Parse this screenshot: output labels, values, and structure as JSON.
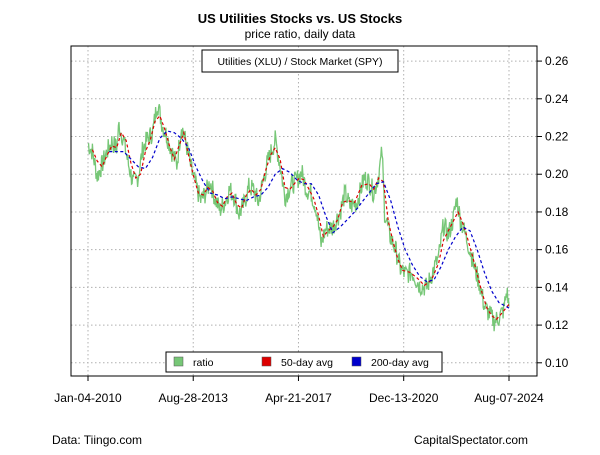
{
  "chart_data": {
    "type": "line",
    "title": "US Utilities Stocks vs. US Stocks",
    "subtitle": "price ratio, daily data",
    "xlabel": "",
    "ylabel": "",
    "box_label": "Utilities (XLU) / Stock Market (SPY)",
    "x_range": [
      "2010-01-04",
      "2024-08-07"
    ],
    "y_range": [
      0.093,
      0.268
    ],
    "y_ticks": [
      "0.10",
      "0.12",
      "0.14",
      "0.16",
      "0.18",
      "0.20",
      "0.22",
      "0.24",
      "0.26"
    ],
    "y_tick_values": [
      0.1,
      0.12,
      0.14,
      0.16,
      0.18,
      0.2,
      0.22,
      0.24,
      0.26
    ],
    "x_ticks": [
      "Jan-04-2010",
      "Aug-28-2013",
      "Apr-21-2017",
      "Dec-13-2020",
      "Aug-07-2024"
    ],
    "x_tick_values": [
      "2010-01-04",
      "2013-08-28",
      "2017-04-21",
      "2020-12-13",
      "2024-08-07"
    ],
    "grid": true,
    "legend_position": "bottom",
    "series": [
      {
        "name": "ratio",
        "color": "#77c777",
        "points": [
          [
            "2010-01-04",
            0.216
          ],
          [
            "2010-03-01",
            0.212
          ],
          [
            "2010-05-01",
            0.199
          ],
          [
            "2010-07-01",
            0.205
          ],
          [
            "2010-09-01",
            0.212
          ],
          [
            "2010-11-01",
            0.217
          ],
          [
            "2011-01-01",
            0.214
          ],
          [
            "2011-02-01",
            0.226
          ],
          [
            "2011-04-01",
            0.218
          ],
          [
            "2011-06-01",
            0.205
          ],
          [
            "2011-08-01",
            0.195
          ],
          [
            "2011-10-01",
            0.199
          ],
          [
            "2011-12-01",
            0.214
          ],
          [
            "2012-02-01",
            0.219
          ],
          [
            "2012-04-01",
            0.222
          ],
          [
            "2012-06-01",
            0.238
          ],
          [
            "2012-08-01",
            0.226
          ],
          [
            "2012-10-01",
            0.22
          ],
          [
            "2012-12-01",
            0.212
          ],
          [
            "2013-02-01",
            0.205
          ],
          [
            "2013-04-01",
            0.226
          ],
          [
            "2013-06-01",
            0.216
          ],
          [
            "2013-08-01",
            0.203
          ],
          [
            "2013-10-01",
            0.194
          ],
          [
            "2013-12-01",
            0.186
          ],
          [
            "2014-02-01",
            0.19
          ],
          [
            "2014-04-01",
            0.196
          ],
          [
            "2014-06-01",
            0.187
          ],
          [
            "2014-08-01",
            0.181
          ],
          [
            "2014-10-01",
            0.185
          ],
          [
            "2014-12-01",
            0.192
          ],
          [
            "2015-02-01",
            0.188
          ],
          [
            "2015-04-01",
            0.179
          ],
          [
            "2015-06-01",
            0.184
          ],
          [
            "2015-08-01",
            0.193
          ],
          [
            "2015-10-01",
            0.192
          ],
          [
            "2015-12-01",
            0.185
          ],
          [
            "2016-02-01",
            0.197
          ],
          [
            "2016-04-01",
            0.207
          ],
          [
            "2016-07-01",
            0.218
          ],
          [
            "2016-09-01",
            0.205
          ],
          [
            "2016-11-01",
            0.188
          ],
          [
            "2017-01-01",
            0.193
          ],
          [
            "2017-04-01",
            0.197
          ],
          [
            "2017-06-01",
            0.201
          ],
          [
            "2017-08-01",
            0.192
          ],
          [
            "2017-10-01",
            0.19
          ],
          [
            "2017-12-01",
            0.182
          ],
          [
            "2018-02-01",
            0.163
          ],
          [
            "2018-04-01",
            0.171
          ],
          [
            "2018-07-01",
            0.172
          ],
          [
            "2018-10-01",
            0.18
          ],
          [
            "2018-12-01",
            0.19
          ],
          [
            "2019-02-01",
            0.183
          ],
          [
            "2019-05-01",
            0.185
          ],
          [
            "2019-08-01",
            0.198
          ],
          [
            "2019-10-01",
            0.196
          ],
          [
            "2019-12-01",
            0.19
          ],
          [
            "2020-02-01",
            0.2
          ],
          [
            "2020-03-15",
            0.212
          ],
          [
            "2020-04-15",
            0.18
          ],
          [
            "2020-06-15",
            0.168
          ],
          [
            "2020-09-01",
            0.16
          ],
          [
            "2020-11-01",
            0.15
          ],
          [
            "2021-01-01",
            0.147
          ],
          [
            "2021-04-01",
            0.148
          ],
          [
            "2021-07-01",
            0.141
          ],
          [
            "2021-10-01",
            0.14
          ],
          [
            "2022-01-01",
            0.15
          ],
          [
            "2022-03-01",
            0.156
          ],
          [
            "2022-05-01",
            0.173
          ],
          [
            "2022-07-01",
            0.168
          ],
          [
            "2022-09-01",
            0.176
          ],
          [
            "2022-10-15",
            0.187
          ],
          [
            "2022-12-01",
            0.176
          ],
          [
            "2023-02-01",
            0.168
          ],
          [
            "2023-04-01",
            0.16
          ],
          [
            "2023-06-01",
            0.15
          ],
          [
            "2023-08-01",
            0.142
          ],
          [
            "2023-10-01",
            0.13
          ],
          [
            "2023-12-01",
            0.126
          ],
          [
            "2024-02-01",
            0.122
          ],
          [
            "2024-04-01",
            0.124
          ],
          [
            "2024-06-01",
            0.128
          ],
          [
            "2024-07-10",
            0.138
          ],
          [
            "2024-08-07",
            0.13
          ]
        ]
      },
      {
        "name": "50-day avg",
        "color": "#dd0000",
        "points": [
          [
            "2010-03-01",
            0.213
          ],
          [
            "2010-05-01",
            0.207
          ],
          [
            "2010-07-01",
            0.204
          ],
          [
            "2010-09-01",
            0.21
          ],
          [
            "2010-11-01",
            0.215
          ],
          [
            "2011-01-01",
            0.214
          ],
          [
            "2011-03-01",
            0.222
          ],
          [
            "2011-05-01",
            0.218
          ],
          [
            "2011-07-01",
            0.206
          ],
          [
            "2011-09-01",
            0.198
          ],
          [
            "2011-11-01",
            0.2
          ],
          [
            "2012-01-01",
            0.212
          ],
          [
            "2012-03-01",
            0.218
          ],
          [
            "2012-05-01",
            0.228
          ],
          [
            "2012-07-01",
            0.231
          ],
          [
            "2012-09-01",
            0.224
          ],
          [
            "2012-11-01",
            0.215
          ],
          [
            "2013-01-01",
            0.208
          ],
          [
            "2013-03-01",
            0.215
          ],
          [
            "2013-05-01",
            0.222
          ],
          [
            "2013-07-01",
            0.21
          ],
          [
            "2013-09-01",
            0.199
          ],
          [
            "2013-11-01",
            0.19
          ],
          [
            "2014-01-01",
            0.189
          ],
          [
            "2014-03-01",
            0.193
          ],
          [
            "2014-05-01",
            0.191
          ],
          [
            "2014-07-01",
            0.185
          ],
          [
            "2014-09-01",
            0.183
          ],
          [
            "2014-11-01",
            0.188
          ],
          [
            "2015-01-01",
            0.19
          ],
          [
            "2015-03-01",
            0.184
          ],
          [
            "2015-05-01",
            0.182
          ],
          [
            "2015-07-01",
            0.189
          ],
          [
            "2015-09-01",
            0.192
          ],
          [
            "2015-11-01",
            0.189
          ],
          [
            "2016-01-01",
            0.192
          ],
          [
            "2016-03-01",
            0.202
          ],
          [
            "2016-05-01",
            0.21
          ],
          [
            "2016-07-01",
            0.214
          ],
          [
            "2016-09-01",
            0.208
          ],
          [
            "2016-11-01",
            0.193
          ],
          [
            "2017-01-01",
            0.192
          ],
          [
            "2017-03-01",
            0.195
          ],
          [
            "2017-05-01",
            0.198
          ],
          [
            "2017-07-01",
            0.197
          ],
          [
            "2017-09-01",
            0.192
          ],
          [
            "2017-11-01",
            0.187
          ],
          [
            "2018-01-01",
            0.178
          ],
          [
            "2018-03-01",
            0.167
          ],
          [
            "2018-05-01",
            0.17
          ],
          [
            "2018-07-01",
            0.172
          ],
          [
            "2018-09-01",
            0.176
          ],
          [
            "2018-11-01",
            0.185
          ],
          [
            "2019-01-01",
            0.186
          ],
          [
            "2019-04-01",
            0.185
          ],
          [
            "2019-07-01",
            0.194
          ],
          [
            "2019-10-01",
            0.195
          ],
          [
            "2019-12-01",
            0.192
          ],
          [
            "2020-02-01",
            0.198
          ],
          [
            "2020-04-01",
            0.196
          ],
          [
            "2020-06-01",
            0.175
          ],
          [
            "2020-08-01",
            0.164
          ],
          [
            "2020-10-01",
            0.155
          ],
          [
            "2020-12-01",
            0.149
          ],
          [
            "2021-03-01",
            0.148
          ],
          [
            "2021-06-01",
            0.145
          ],
          [
            "2021-09-01",
            0.141
          ],
          [
            "2021-12-01",
            0.144
          ],
          [
            "2022-03-01",
            0.153
          ],
          [
            "2022-05-01",
            0.165
          ],
          [
            "2022-07-01",
            0.17
          ],
          [
            "2022-09-01",
            0.175
          ],
          [
            "2022-11-01",
            0.18
          ],
          [
            "2023-01-01",
            0.174
          ],
          [
            "2023-03-01",
            0.166
          ],
          [
            "2023-05-01",
            0.157
          ],
          [
            "2023-07-01",
            0.147
          ],
          [
            "2023-09-01",
            0.137
          ],
          [
            "2023-11-01",
            0.129
          ],
          [
            "2024-01-01",
            0.125
          ],
          [
            "2024-03-01",
            0.123
          ],
          [
            "2024-05-01",
            0.126
          ],
          [
            "2024-08-07",
            0.131
          ]
        ]
      },
      {
        "name": "200-day avg",
        "color": "#0000cc",
        "points": [
          [
            "2010-10-01",
            0.212
          ],
          [
            "2011-01-01",
            0.212
          ],
          [
            "2011-04-01",
            0.212
          ],
          [
            "2011-07-01",
            0.208
          ],
          [
            "2011-10-01",
            0.204
          ],
          [
            "2012-01-01",
            0.203
          ],
          [
            "2012-04-01",
            0.209
          ],
          [
            "2012-07-01",
            0.219
          ],
          [
            "2012-10-01",
            0.223
          ],
          [
            "2013-01-01",
            0.222
          ],
          [
            "2013-04-01",
            0.219
          ],
          [
            "2013-07-01",
            0.214
          ],
          [
            "2013-10-01",
            0.204
          ],
          [
            "2014-01-01",
            0.196
          ],
          [
            "2014-04-01",
            0.19
          ],
          [
            "2014-07-01",
            0.189
          ],
          [
            "2014-10-01",
            0.187
          ],
          [
            "2015-01-01",
            0.188
          ],
          [
            "2015-04-01",
            0.187
          ],
          [
            "2015-07-01",
            0.186
          ],
          [
            "2015-10-01",
            0.188
          ],
          [
            "2016-01-01",
            0.189
          ],
          [
            "2016-04-01",
            0.193
          ],
          [
            "2016-07-01",
            0.2
          ],
          [
            "2016-10-01",
            0.203
          ],
          [
            "2017-01-01",
            0.201
          ],
          [
            "2017-04-01",
            0.197
          ],
          [
            "2017-07-01",
            0.195
          ],
          [
            "2017-10-01",
            0.195
          ],
          [
            "2018-01-01",
            0.189
          ],
          [
            "2018-04-01",
            0.178
          ],
          [
            "2018-07-01",
            0.169
          ],
          [
            "2018-10-01",
            0.172
          ],
          [
            "2019-01-01",
            0.176
          ],
          [
            "2019-04-01",
            0.18
          ],
          [
            "2019-07-01",
            0.185
          ],
          [
            "2019-10-01",
            0.19
          ],
          [
            "2020-01-01",
            0.195
          ],
          [
            "2020-04-01",
            0.196
          ],
          [
            "2020-07-01",
            0.186
          ],
          [
            "2020-10-01",
            0.172
          ],
          [
            "2021-01-01",
            0.16
          ],
          [
            "2021-04-01",
            0.152
          ],
          [
            "2021-07-01",
            0.146
          ],
          [
            "2021-10-01",
            0.143
          ],
          [
            "2022-01-01",
            0.144
          ],
          [
            "2022-04-01",
            0.151
          ],
          [
            "2022-07-01",
            0.16
          ],
          [
            "2022-10-01",
            0.167
          ],
          [
            "2023-01-01",
            0.172
          ],
          [
            "2023-04-01",
            0.17
          ],
          [
            "2023-07-01",
            0.16
          ],
          [
            "2023-10-01",
            0.148
          ],
          [
            "2024-01-01",
            0.138
          ],
          [
            "2024-04-01",
            0.132
          ],
          [
            "2024-08-07",
            0.129
          ]
        ]
      }
    ]
  },
  "footer": {
    "source": "Data: Tiingo.com",
    "credit": "CapitalSpectator.com"
  }
}
